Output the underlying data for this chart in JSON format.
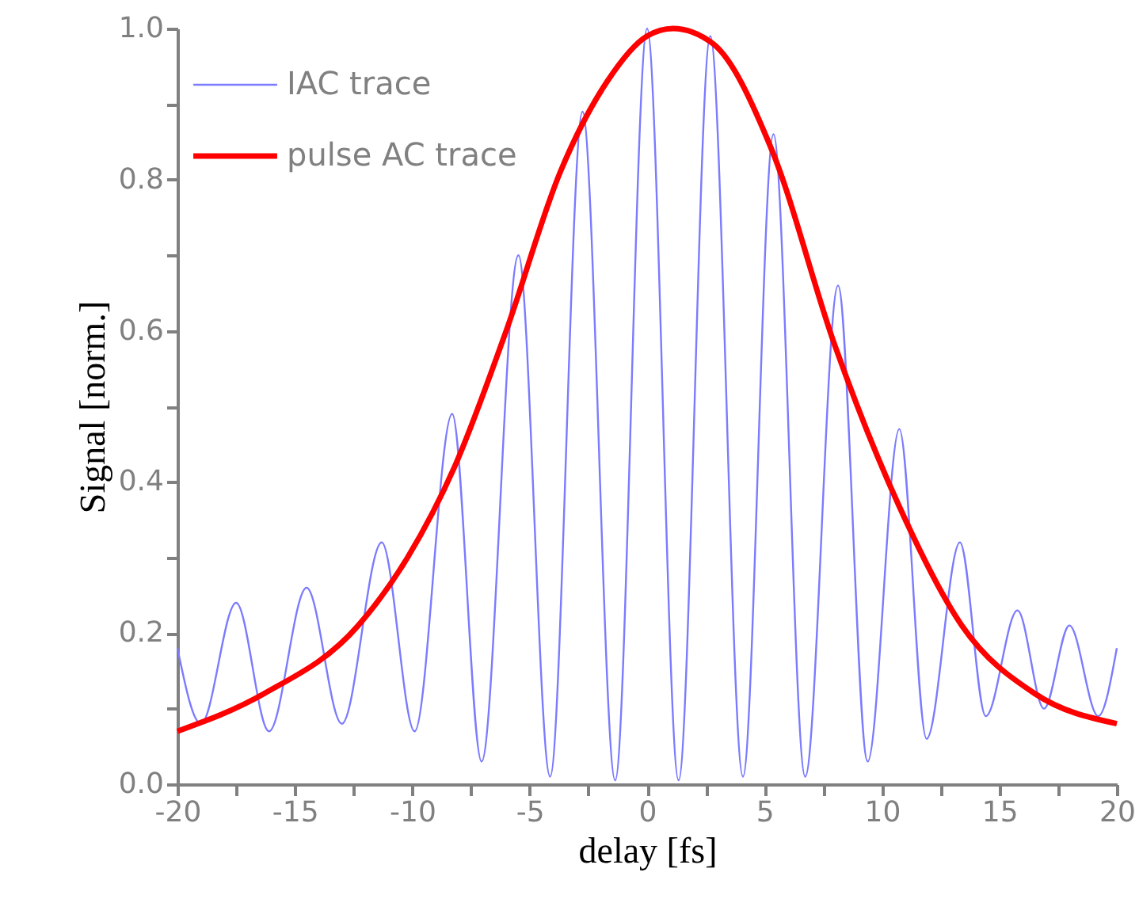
{
  "chart_data": {
    "type": "line",
    "xlabel": "delay [fs]",
    "ylabel": "Signal [norm.]",
    "xlim": [
      -20,
      20
    ],
    "ylim": [
      0,
      1
    ],
    "xticks": [
      -20,
      {
        "value": -17.5,
        "label": null
      },
      -15,
      {
        "value": -12.5,
        "label": null
      },
      -10,
      {
        "value": -7.5,
        "label": null
      },
      -5,
      {
        "value": -2.5,
        "label": null
      },
      0,
      {
        "value": 2.5,
        "label": null
      },
      5,
      {
        "value": 7.5,
        "label": null
      },
      10,
      {
        "value": 12.5,
        "label": null
      },
      15,
      {
        "value": 17.5,
        "label": null
      },
      20
    ],
    "yticks": [
      {
        "value": 0,
        "label": "0.0"
      },
      {
        "value": 0.1,
        "label": null
      },
      0.2,
      {
        "value": 0.3,
        "label": null
      },
      0.4,
      {
        "value": 0.5,
        "label": null
      },
      0.6,
      {
        "value": 0.7,
        "label": null
      },
      0.8,
      {
        "value": 0.9,
        "label": null
      },
      {
        "value": 1,
        "label": "1.0"
      }
    ],
    "legend": "top left",
    "marker": "none",
    "line_style": "solid",
    "series": [
      {
        "name": "IAC trace",
        "color": "#7b7bff",
        "x": [
          -20,
          -19.0,
          -17.5,
          -16.1,
          -14.5,
          -13.0,
          -11.3,
          -9.9,
          -8.3,
          -7.05,
          -5.48,
          -4.13,
          -2.75,
          -1.36,
          0,
          1.34,
          2.69,
          4.08,
          5.38,
          6.73,
          8.13,
          9.39,
          10.74,
          11.9,
          13.32,
          14.42,
          15.77,
          16.9,
          17.98,
          19.21,
          20
        ],
        "values": [
          0.18,
          0.08,
          0.24,
          0.07,
          0.26,
          0.08,
          0.32,
          0.07,
          0.49,
          0.03,
          0.7,
          0.01,
          0.89,
          0.005,
          1.0,
          0.005,
          0.99,
          0.01,
          0.86,
          0.01,
          0.66,
          0.03,
          0.47,
          0.06,
          0.32,
          0.09,
          0.23,
          0.1,
          0.21,
          0.09,
          0.18
        ]
      },
      {
        "name": "pulse AC trace",
        "color": "#ff0000",
        "x": [
          -20,
          -16.3,
          -12.3,
          -10.2,
          -8.2,
          -6.0,
          -3.7,
          -1.7,
          0,
          1.1,
          2.8,
          5.3,
          8.0,
          10.7,
          13.4,
          16.5,
          20
        ],
        "values": [
          0.07,
          0.12,
          0.21,
          0.3,
          0.42,
          0.6,
          0.81,
          0.93,
          0.99,
          1.0,
          0.98,
          0.84,
          0.58,
          0.37,
          0.21,
          0.12,
          0.08
        ]
      }
    ]
  }
}
